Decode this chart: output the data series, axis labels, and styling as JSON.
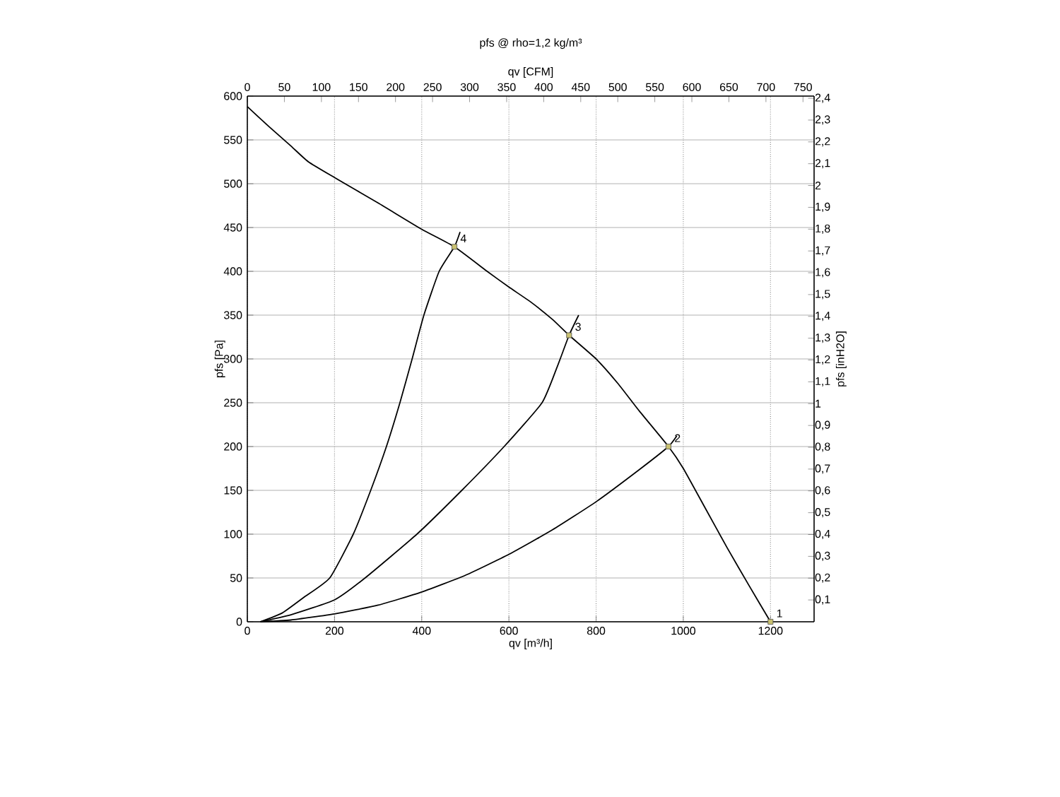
{
  "chart_data": {
    "type": "line",
    "title": "pfs @ rho=1,2 kg/m³",
    "xlabel": "qv [m³/h]",
    "ylabel": "pfs [Pa]",
    "x2label": "qv [CFM]",
    "y2label": "pfs [inH2O]",
    "xlim": [
      0,
      1300
    ],
    "xticks": [
      0,
      200,
      400,
      600,
      800,
      1000,
      1200
    ],
    "ylim": [
      0,
      600
    ],
    "yticks": [
      0,
      50,
      100,
      150,
      200,
      250,
      300,
      350,
      400,
      450,
      500,
      550,
      600
    ],
    "x2lim": [
      0,
      765
    ],
    "x2ticks": [
      0,
      50,
      100,
      150,
      200,
      250,
      300,
      350,
      400,
      450,
      500,
      550,
      600,
      650,
      700,
      750
    ],
    "y2lim": [
      0,
      2.41
    ],
    "y2ticks": [
      {
        "value": 0.1,
        "label": "0,1"
      },
      {
        "value": 0.2,
        "label": "0,2"
      },
      {
        "value": 0.3,
        "label": "0,3"
      },
      {
        "value": 0.4,
        "label": "0,4"
      },
      {
        "value": 0.5,
        "label": "0,5"
      },
      {
        "value": 0.6,
        "label": "0,6"
      },
      {
        "value": 0.7,
        "label": "0,7"
      },
      {
        "value": 0.8,
        "label": "0,8"
      },
      {
        "value": 0.9,
        "label": "0,9"
      },
      {
        "value": 1,
        "label": "1"
      },
      {
        "value": 1.1,
        "label": "1,1"
      },
      {
        "value": 1.2,
        "label": "1,2"
      },
      {
        "value": 1.3,
        "label": "1,3"
      },
      {
        "value": 1.4,
        "label": "1,4"
      },
      {
        "value": 1.5,
        "label": "1,5"
      },
      {
        "value": 1.6,
        "label": "1,6"
      },
      {
        "value": 1.7,
        "label": "1,7"
      },
      {
        "value": 1.8,
        "label": "1,8"
      },
      {
        "value": 1.9,
        "label": "1,9"
      },
      {
        "value": 2,
        "label": "2"
      },
      {
        "value": 2.1,
        "label": "2,1"
      },
      {
        "value": 2.2,
        "label": "2,2"
      },
      {
        "value": 2.3,
        "label": "2,3"
      },
      {
        "value": 2.4,
        "label": "2,4"
      }
    ],
    "grid": true,
    "line_style": "solid",
    "series": [
      {
        "color": "#000000",
        "x": [
          0,
          50,
          100,
          140,
          200,
          300,
          400,
          475,
          550,
          600,
          650,
          700,
          738,
          800,
          850,
          900,
          966,
          1000,
          1050,
          1100,
          1150,
          1200
        ],
        "values": [
          588,
          565,
          543,
          525,
          507,
          478,
          448,
          428,
          400,
          382,
          365,
          345,
          327,
          300,
          272,
          240,
          200,
          175,
          130,
          85,
          42,
          0
        ]
      },
      {
        "color": "#000000",
        "x": [
          30,
          80,
          130,
          189,
          243,
          283,
          319,
          350,
          378,
          405,
          440,
          475,
          488
        ],
        "values": [
          0,
          10,
          28,
          50,
          100,
          150,
          200,
          250,
          300,
          350,
          400,
          428,
          445
        ]
      },
      {
        "color": "#000000",
        "x": [
          30,
          100,
          200,
          270,
          389,
          492,
          589,
          676,
          710,
          738,
          760
        ],
        "values": [
          0,
          8,
          25,
          50,
          100,
          150,
          200,
          250,
          290,
          327,
          350
        ]
      },
      {
        "color": "#000000",
        "x": [
          30,
          100,
          200,
          300,
          400,
          500,
          600,
          700,
          800,
          900,
          966,
          985
        ],
        "values": [
          0,
          2,
          9,
          19,
          34,
          53,
          77,
          105,
          137,
          174,
          200,
          212
        ]
      },
      {
        "type": "scatter",
        "marker": "square",
        "color": "#c8c070",
        "x": [
          1200,
          966,
          738,
          475
        ],
        "values": [
          0,
          200,
          327,
          428
        ]
      }
    ],
    "annotations": [
      {
        "text": "1",
        "x": 1200,
        "y": 0
      },
      {
        "text": "2",
        "x": 966,
        "y": 200
      },
      {
        "text": "3",
        "x": 738,
        "y": 327
      },
      {
        "text": "4",
        "x": 475,
        "y": 428
      }
    ]
  }
}
